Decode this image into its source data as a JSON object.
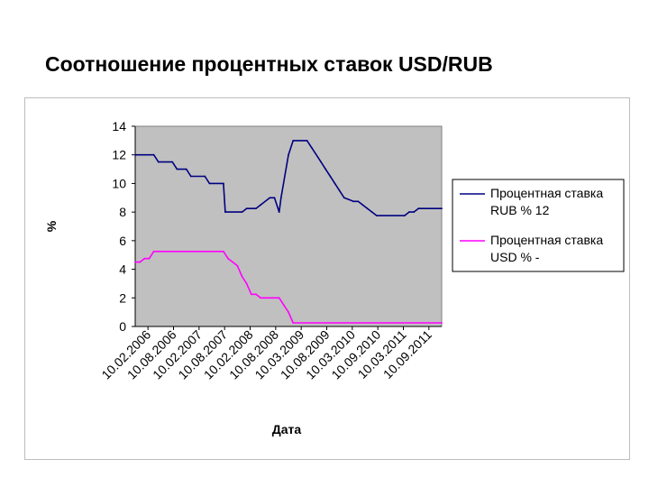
{
  "slide": {
    "title": "Соотношение процентных ставок USD/RUB"
  },
  "chart_data": {
    "type": "line",
    "xlabel": "Дата",
    "ylabel": "%",
    "ylim": [
      0,
      14
    ],
    "yticks": [
      0,
      2,
      4,
      6,
      8,
      10,
      12,
      14
    ],
    "grid": false,
    "plot_background": "#c0c0c0",
    "legend_position": "right",
    "xticks": [
      "10.02.2006",
      "10.08.2006",
      "10.02.2007",
      "10.08.2007",
      "10.02.2008",
      "10.08.2008",
      "10.03.2009",
      "10.08.2009",
      "10.03.2010",
      "10.09.2010",
      "10.03.2011",
      "10.09.2011"
    ],
    "x_range": [
      0,
      66
    ],
    "series": [
      {
        "name": "Процентная ставка RUB % 12",
        "color": "#000080",
        "x": [
          0,
          4,
          5,
          8,
          9,
          11,
          12,
          15,
          16,
          19,
          19.4,
          23,
          24,
          26,
          27,
          29,
          30,
          31,
          31.4,
          33,
          34,
          37,
          38,
          40,
          41,
          42,
          43,
          44,
          45,
          47,
          48,
          49,
          50,
          51,
          52,
          58,
          59,
          60,
          61,
          66
        ],
        "values": [
          12,
          12,
          11.5,
          11.5,
          11,
          11,
          10.5,
          10.5,
          10,
          10,
          8,
          8,
          8.25,
          8.25,
          8.5,
          9,
          9,
          8,
          9,
          12,
          13,
          13,
          12.5,
          11.5,
          11,
          10.5,
          10,
          9.5,
          9,
          8.75,
          8.75,
          8.5,
          8.25,
          8,
          7.75,
          7.75,
          8,
          8,
          8.25,
          8.25
        ]
      },
      {
        "name": "Процентная ставка USD % -",
        "color": "#ff00ff",
        "x": [
          0,
          1,
          2,
          3,
          4,
          5,
          19,
          20,
          21,
          22,
          23,
          24,
          25,
          26,
          27,
          31,
          32,
          33,
          34,
          66
        ],
        "values": [
          4.5,
          4.5,
          4.75,
          4.75,
          5.25,
          5.25,
          5.25,
          4.75,
          4.5,
          4.25,
          3.5,
          3,
          2.25,
          2.25,
          2,
          2,
          1.5,
          1,
          0.25,
          0.25
        ]
      }
    ]
  }
}
